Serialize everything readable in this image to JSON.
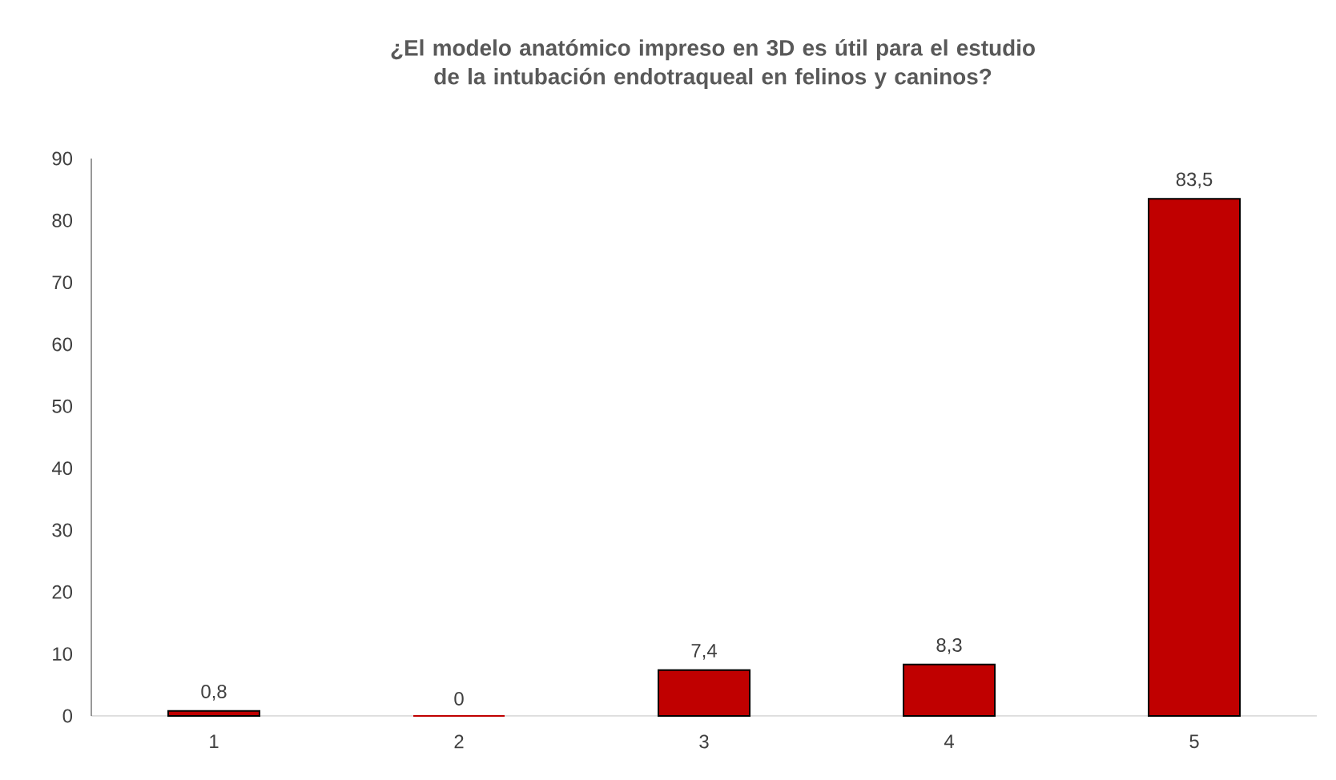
{
  "chart_data": {
    "type": "bar",
    "title": "¿El modelo anatómico impreso en 3D es útil para el estudio de la intubación endotraqueal en felinos y caninos?",
    "categories": [
      "1",
      "2",
      "3",
      "4",
      "5"
    ],
    "values": [
      0.8,
      0,
      7.4,
      8.3,
      83.5
    ],
    "value_labels": [
      "0,8",
      "0",
      "7,4",
      "8,3",
      "83,5"
    ],
    "color": "#c00000",
    "ylim": [
      0,
      90
    ],
    "yticks": [
      0,
      10,
      20,
      30,
      40,
      50,
      60,
      70,
      80,
      90
    ],
    "grid": false
  }
}
